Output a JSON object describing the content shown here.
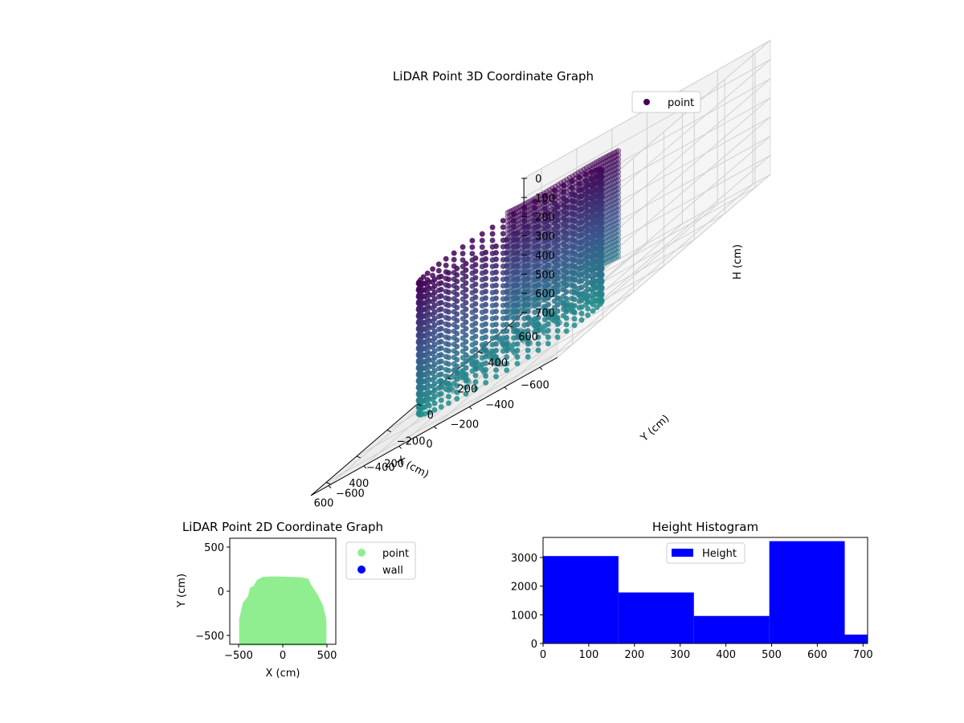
{
  "chart_data": [
    {
      "type": "scatter",
      "title": "LiDAR Point 3D Coordinate Graph",
      "xlabel": "X (cm)",
      "ylabel": "Y (cm)",
      "zlabel": "H (cm)",
      "xlim": [
        -700,
        700
      ],
      "ylim": [
        -700,
        700
      ],
      "zlim": [
        700,
        0
      ],
      "xticks": [
        "−600",
        "−400",
        "−200",
        "0",
        "200",
        "400",
        "600"
      ],
      "yticks": [
        "−600",
        "−400",
        "−200",
        "0",
        "200",
        "400",
        "600"
      ],
      "zticks": [
        "0",
        "100",
        "200",
        "300",
        "400",
        "500",
        "600",
        "700"
      ],
      "grid": true,
      "legend": {
        "position": "top-right",
        "entries": [
          {
            "label": "point",
            "color": "#440154"
          }
        ]
      },
      "colors": {
        "high": "#440154",
        "mid": "#3b528b",
        "low": "#21918c"
      }
    },
    {
      "type": "scatter",
      "title": "LiDAR Point 2D Coordinate Graph",
      "xlabel": "X (cm)",
      "ylabel": "Y (cm)",
      "xlim": [
        -600,
        600
      ],
      "ylim": [
        -600,
        600
      ],
      "xticks": [
        -500,
        0,
        500
      ],
      "yticks": [
        -500,
        0,
        500
      ],
      "legend": {
        "position": "outside-right",
        "entries": [
          {
            "label": "point",
            "color": "#90ee90"
          },
          {
            "label": "wall",
            "color": "#0000ff"
          }
        ]
      },
      "region_outline": [
        [
          -480,
          -600
        ],
        [
          -480,
          -320
        ],
        [
          -440,
          -140
        ],
        [
          -380,
          -60
        ],
        [
          -360,
          30
        ],
        [
          -320,
          50
        ],
        [
          -280,
          120
        ],
        [
          -220,
          150
        ],
        [
          -100,
          155
        ],
        [
          50,
          150
        ],
        [
          200,
          145
        ],
        [
          280,
          130
        ],
        [
          300,
          80
        ],
        [
          380,
          -40
        ],
        [
          440,
          -160
        ],
        [
          480,
          -320
        ],
        [
          480,
          -600
        ]
      ]
    },
    {
      "type": "bar",
      "title": "Height Histogram",
      "xlim": [
        0,
        710
      ],
      "ylim": [
        0,
        3700
      ],
      "xticks": [
        0,
        100,
        200,
        300,
        400,
        500,
        600,
        700
      ],
      "yticks": [
        0,
        1000,
        2000,
        3000
      ],
      "bins": [
        {
          "start": 0,
          "end": 165,
          "count": 3050
        },
        {
          "start": 165,
          "end": 330,
          "count": 1780
        },
        {
          "start": 330,
          "end": 495,
          "count": 960
        },
        {
          "start": 495,
          "end": 660,
          "count": 3570
        },
        {
          "start": 660,
          "end": 710,
          "count": 310
        }
      ],
      "color": "#0000ff",
      "legend": {
        "position": "upper-center",
        "entries": [
          {
            "label": "Height",
            "color": "#0000ff"
          }
        ]
      }
    }
  ]
}
